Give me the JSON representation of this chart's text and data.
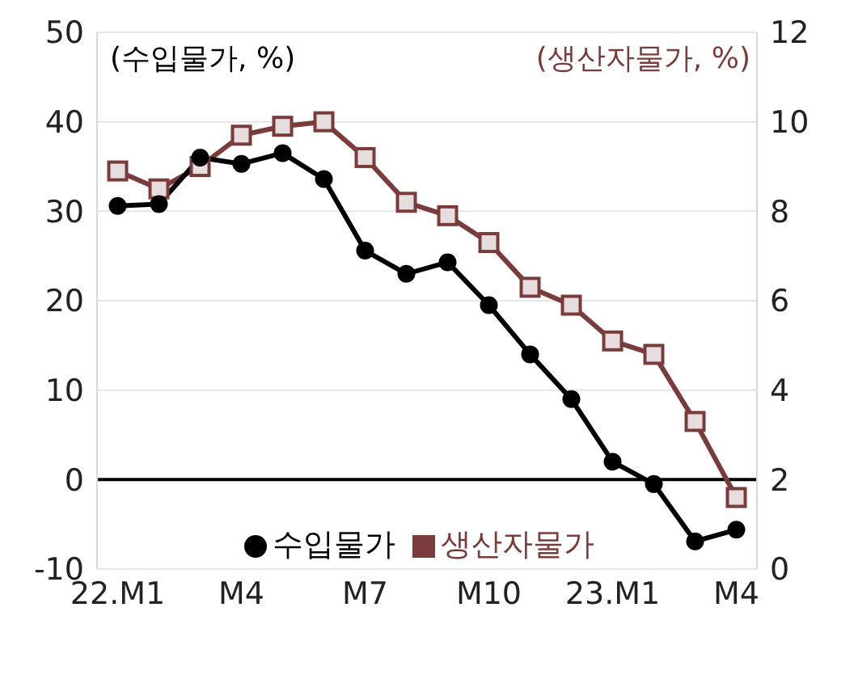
{
  "chart_data": {
    "type": "line",
    "ylabel": "(수입물가, %)",
    "y2label": "(생산자물가, %)",
    "categories": [
      "22.M1",
      null,
      null,
      "M4",
      null,
      null,
      "M7",
      null,
      null,
      "M10",
      null,
      null,
      "23.M1",
      null,
      null,
      "M4"
    ],
    "series": [
      {
        "name": "수입물가",
        "color": "#000000",
        "marker": "circle",
        "values": [
          30.6,
          30.8,
          36,
          35.3,
          36.5,
          33.6,
          25.6,
          23,
          24.3,
          19.5,
          14,
          9,
          2,
          -0.5,
          -6.9,
          -5.6
        ]
      },
      {
        "name": "생산자물가",
        "color": "#7a3b3b",
        "marker": "square",
        "axis": "y2",
        "values": [
          8.9,
          8.5,
          9.0,
          9.7,
          9.9,
          10.0,
          9.2,
          8.2,
          7.9,
          7.3,
          6.3,
          5.9,
          5.1,
          4.8,
          3.3,
          1.6
        ]
      }
    ],
    "ylim": [
      -10,
      50
    ],
    "yticks": [
      -10,
      0,
      10,
      20,
      30,
      40,
      50
    ],
    "y2lim": [
      0,
      12
    ],
    "y2ticks": [
      0,
      2,
      4,
      6,
      8,
      10,
      12
    ],
    "grid": "y",
    "legend": "bottom"
  }
}
